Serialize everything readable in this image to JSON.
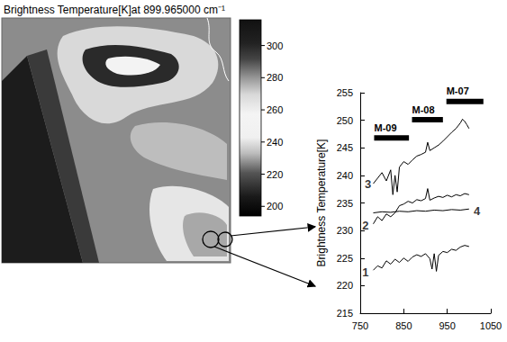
{
  "image_panel": {
    "title": "Brightness Temperature[K]at 899.965000 cm⁻¹",
    "colorbar": {
      "range": [
        194,
        316
      ],
      "ticks": [
        200,
        220,
        240,
        260,
        280,
        300
      ]
    }
  },
  "chart_data": {
    "type": "line",
    "y_label": "Brightness Temperature[K]",
    "xlim": [
      750,
      1050
    ],
    "xticks": [
      750,
      850,
      950,
      1050
    ],
    "ylim": [
      215,
      255
    ],
    "yticks": [
      215,
      220,
      225,
      230,
      235,
      240,
      245,
      250,
      255
    ],
    "grid": false,
    "series": [
      {
        "color": "#000000",
        "x": [
          780,
          790,
          800,
          810,
          820,
          825,
          830,
          835,
          840,
          850,
          860,
          870,
          880,
          890,
          900,
          905,
          910,
          920,
          930,
          940,
          950,
          960,
          970,
          980,
          985,
          990,
          995,
          1000
        ],
        "values": [
          238.5,
          239.5,
          240.5,
          239,
          241,
          236.5,
          240,
          237,
          241.5,
          242.5,
          242,
          242.8,
          243.5,
          243.8,
          244.2,
          246,
          244.5,
          245,
          245.5,
          246.2,
          247,
          247.8,
          248.5,
          249.5,
          250.2,
          249.8,
          249.2,
          248.5
        ]
      },
      {
        "color": "#000000",
        "x": [
          780,
          790,
          800,
          810,
          820,
          830,
          840,
          850,
          860,
          870,
          880,
          890,
          900,
          905,
          910,
          920,
          930,
          940,
          950,
          960,
          970,
          980,
          990,
          1000
        ],
        "values": [
          231.2,
          232.5,
          231.8,
          233,
          232.5,
          233.2,
          234.5,
          234.8,
          235.3,
          235,
          235.6,
          235.4,
          235.8,
          237.6,
          235.5,
          235.9,
          236.2,
          236,
          236.4,
          236.1,
          236.5,
          236.3,
          236.7,
          236.5
        ]
      },
      {
        "color": "#000000",
        "x": [
          780,
          800,
          820,
          840,
          860,
          880,
          900,
          920,
          940,
          960,
          980,
          1000
        ],
        "values": [
          233.2,
          233.4,
          233.3,
          233.5,
          233.4,
          233.6,
          233.5,
          233.7,
          233.6,
          233.8,
          233.7,
          233.9
        ]
      },
      {
        "color": "#000000",
        "x": [
          780,
          790,
          800,
          810,
          820,
          830,
          840,
          850,
          860,
          870,
          880,
          890,
          900,
          910,
          915,
          920,
          925,
          930,
          940,
          950,
          960,
          970,
          980,
          990,
          1000
        ],
        "values": [
          222.8,
          223.6,
          223.2,
          224.5,
          223.9,
          224.8,
          224.2,
          225,
          224.4,
          225.2,
          225.6,
          225.3,
          225.8,
          224.9,
          223,
          225.8,
          222.6,
          225.5,
          226.2,
          226,
          226.6,
          226.4,
          227,
          227.3,
          227.1
        ]
      }
    ],
    "bands": [
      {
        "label": "M-09",
        "x": [
          782,
          862
        ],
        "y": 246.8,
        "color": "#000000"
      },
      {
        "label": "M-08",
        "x": [
          869,
          940
        ],
        "y": 250.1,
        "color": "#000000"
      },
      {
        "label": "M-07",
        "x": [
          948,
          1033
        ],
        "y": 253.4,
        "color": "#000000"
      }
    ],
    "annotations": [
      {
        "text": "1",
        "x": 762,
        "y": 222.5
      },
      {
        "text": "2",
        "x": 762,
        "y": 231
      },
      {
        "text": "3",
        "x": 768,
        "y": 238.5
      },
      {
        "text": "4",
        "x": 1018,
        "y": 233.6
      }
    ]
  }
}
